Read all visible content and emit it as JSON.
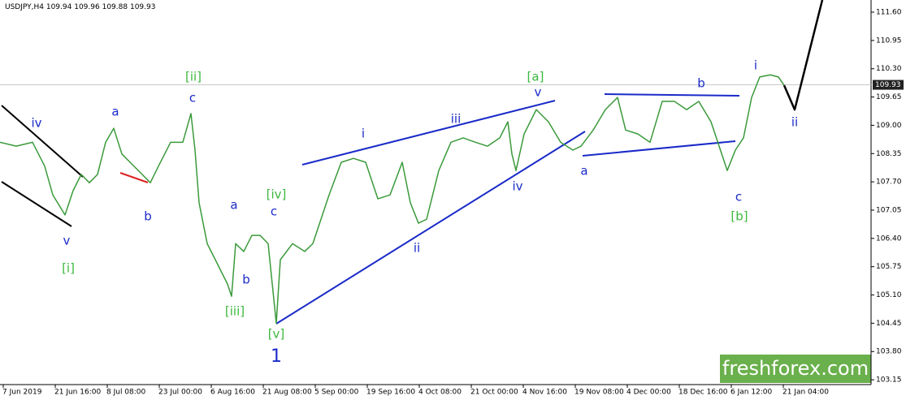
{
  "chart_data": {
    "type": "line",
    "symbol": "USDJPY,H4",
    "header_ohlc": [
      109.94,
      109.96,
      109.88,
      109.93
    ],
    "watermark": "freshforex.com",
    "x": [
      0,
      5,
      10,
      13.75,
      16.25,
      20,
      22.5,
      25,
      27.5,
      30,
      32.5,
      35,
      37.5,
      40,
      43.75,
      46.25,
      48.75,
      52.5,
      56.25,
      58.75,
      60,
      61.25,
      63.75,
      66.25,
      70,
      71.25,
      72.5,
      75,
      77.5,
      80,
      82.5,
      85,
      86.25,
      90,
      93.75,
      96.25,
      98.75,
      101.25,
      105,
      108.75,
      112.5,
      116.25,
      120,
      123.75,
      126.25,
      128.75,
      131.25,
      135,
      138.75,
      142.5,
      146.25,
      150,
      153.75,
      156.25,
      157.5,
      158.75,
      161.25,
      165,
      168.75,
      172.5,
      176.25,
      178.75,
      182.5,
      186.25,
      190,
      192.5,
      196.25,
      200,
      203.75,
      207.5,
      211.25,
      215,
      218.75,
      221.25,
      223.75,
      226.25,
      228.75,
      231.25,
      233.75,
      237,
      239.5,
      241.25
    ],
    "series": [
      {
        "color": "#3a9a3a",
        "values": [
          108.61,
          108.52,
          108.61,
          108.06,
          107.4,
          106.94,
          107.5,
          107.87,
          107.68,
          107.87,
          108.61,
          108.93,
          108.34,
          108.15,
          107.87,
          107.68,
          108.06,
          108.61,
          108.61,
          109.27,
          108.43,
          107.22,
          106.28,
          105.91,
          105.35,
          105.07,
          106.28,
          106.1,
          106.47,
          106.47,
          106.28,
          104.45,
          105.91,
          106.28,
          106.1,
          106.28,
          106.84,
          107.4,
          108.15,
          108.24,
          108.15,
          107.31,
          107.4,
          108.15,
          107.22,
          106.75,
          106.84,
          107.96,
          108.61,
          108.71,
          108.61,
          108.52,
          108.71,
          109.08,
          108.34,
          107.96,
          108.8,
          109.36,
          109.08,
          108.61,
          108.43,
          108.52,
          108.89,
          109.36,
          109.64,
          108.89,
          108.8,
          108.61,
          109.55,
          109.55,
          109.36,
          109.55,
          109.08,
          108.52,
          107.96,
          108.43,
          108.71,
          109.64,
          110.11,
          110.16,
          110.11,
          109.92
        ]
      },
      {
        "color": "#000000",
        "x": [
          241.25,
          244.5,
          253
        ],
        "values": [
          109.92,
          109.36,
          111.88
        ]
      }
    ],
    "xlim": [
      0,
      268
    ],
    "ylim": [
      103.04,
      111.88
    ],
    "xticks": [
      {
        "value": 1,
        "label": "7 Jun 2019"
      },
      {
        "value": 17,
        "label": "21 Jun 16:00"
      },
      {
        "value": 33,
        "label": "8 Jul 08:00"
      },
      {
        "value": 49,
        "label": "23 Jul 00:00"
      },
      {
        "value": 65,
        "label": "6 Aug 16:00"
      },
      {
        "value": 81,
        "label": "21 Aug 08:00"
      },
      {
        "value": 97,
        "label": "5 Sep 00:00"
      },
      {
        "value": 113,
        "label": "19 Sep 16:00"
      },
      {
        "value": 129,
        "label": "4 Oct 08:00"
      },
      {
        "value": 145,
        "label": "21 Oct 00:00"
      },
      {
        "value": 161,
        "label": "4 Nov 16:00"
      },
      {
        "value": 177,
        "label": "19 Nov 08:00"
      },
      {
        "value": 193,
        "label": "4 Dec 00:00"
      },
      {
        "value": 209,
        "label": "18 Dec 16:00"
      },
      {
        "value": 225,
        "label": "6 Jan 12:00"
      },
      {
        "value": 241,
        "label": "21 Jan 04:00"
      }
    ],
    "yticks": [
      103.15,
      {
        "value": 103.8,
        "label": "103.80"
      },
      104.45,
      {
        "value": 105.1,
        "label": "105.10"
      },
      105.75,
      {
        "value": 106.4,
        "label": "106.40"
      },
      107.05,
      {
        "value": 107.7,
        "label": "107.70"
      },
      108.35,
      {
        "value": 109,
        "label": "109.00"
      },
      109.65,
      {
        "value": 110.3,
        "label": "110.30"
      },
      110.95,
      {
        "value": 111.6,
        "label": "111.60"
      }
    ],
    "annotations": [
      {
        "text": "iv",
        "color": "#1a2bc8"
      },
      {
        "text": "v",
        "color": "#1a2bc8"
      },
      {
        "text": "[i]",
        "color": "#3cb83c"
      },
      {
        "text": "a",
        "color": "#1a2bc8"
      },
      {
        "text": "b",
        "color": "#1a2bc8"
      },
      {
        "text": "[ii]",
        "color": "#3cb83c"
      },
      {
        "text": "c",
        "color": "#1a2bc8"
      },
      {
        "text": "a",
        "color": "#1a2bc8"
      },
      {
        "text": "c",
        "color": "#1a2bc8"
      },
      {
        "text": "[iv]",
        "color": "#3cb83c"
      },
      {
        "text": "b",
        "color": "#1a2bc8"
      },
      {
        "text": "[iii]",
        "color": "#3cb83c"
      },
      {
        "text": "[v]",
        "color": "#3cb83c"
      },
      {
        "text": "1",
        "color": "#1a2bc8"
      },
      {
        "text": "i",
        "color": "#1a2bc8"
      },
      {
        "text": "iii",
        "color": "#1a2bc8"
      },
      {
        "text": "[a]",
        "color": "#3cb83c"
      },
      {
        "text": "v",
        "color": "#1a2bc8"
      },
      {
        "text": "ii",
        "color": "#1a2bc8"
      },
      {
        "text": "iv",
        "color": "#1a2bc8"
      },
      {
        "text": "a",
        "color": "#1a2bc8"
      },
      {
        "text": "b",
        "color": "#1a2bc8"
      },
      {
        "text": "c",
        "color": "#1a2bc8"
      },
      {
        "text": "[b]",
        "color": "#3cb83c"
      },
      {
        "text": "i",
        "color": "#1a2bc8"
      },
      {
        "text": "ii",
        "color": "#1a2bc8"
      }
    ]
  }
}
